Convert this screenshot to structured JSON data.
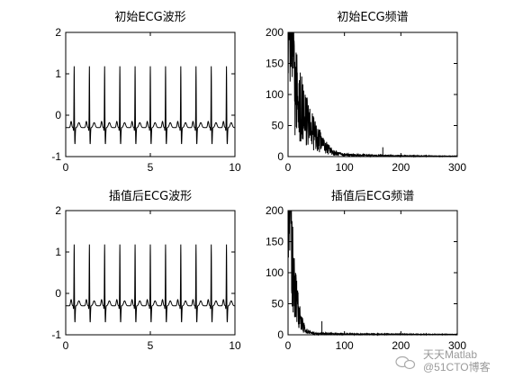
{
  "chart_data": [
    {
      "type": "line",
      "title": "初始ECG波形",
      "xlim": [
        0,
        10
      ],
      "ylim": [
        -1,
        2
      ],
      "xticks": [
        "0",
        "5",
        "10"
      ],
      "yticks": [
        "-1",
        "0",
        "1",
        "2"
      ],
      "grid": false,
      "series": [
        {
          "description": "ECG waveform, ~11 beats over 10 s; baseline about -0.3, R peaks about 1.2, dips to about -0.55",
          "baseline": -0.3,
          "r_peak": 1.2,
          "s_trough": -0.55,
          "beat_times": [
            0.5,
            1.4,
            2.3,
            3.2,
            4.1,
            5.0,
            5.9,
            6.8,
            7.7,
            8.6,
            9.5
          ]
        }
      ]
    },
    {
      "type": "line",
      "title": "初始ECG频谱",
      "xlim": [
        0,
        300
      ],
      "ylim": [
        0,
        200
      ],
      "xticks": [
        "0",
        "100",
        "200",
        "300"
      ],
      "yticks": [
        "0",
        "50",
        "100",
        "150",
        "200"
      ],
      "grid": false,
      "series": [
        {
          "description": "magnitude spectrum; clipped near 200 below ~20, decays to near 0 by ~90, small spike ~15 at 168",
          "envelope": [
            [
              0,
              200
            ],
            [
              10,
              200
            ],
            [
              20,
              150
            ],
            [
              30,
              110
            ],
            [
              40,
              80
            ],
            [
              50,
              55
            ],
            [
              60,
              38
            ],
            [
              70,
              22
            ],
            [
              80,
              12
            ],
            [
              90,
              7
            ],
            [
              100,
              5
            ],
            [
              150,
              3
            ],
            [
              200,
              2
            ],
            [
              300,
              1
            ]
          ],
          "spike": [
            168,
            15
          ]
        }
      ]
    },
    {
      "type": "line",
      "title": "插值后ECG波形",
      "xlim": [
        0,
        10
      ],
      "ylim": [
        -1,
        2
      ],
      "xticks": [
        "0",
        "5",
        "10"
      ],
      "yticks": [
        "-1",
        "0",
        "1",
        "2"
      ],
      "grid": false,
      "series": [
        {
          "description": "interpolated ECG waveform, same shape as original",
          "baseline": -0.3,
          "r_peak": 1.2,
          "s_trough": -0.55,
          "beat_times": [
            0.5,
            1.4,
            2.3,
            3.2,
            4.1,
            5.0,
            5.9,
            6.8,
            7.7,
            8.6,
            9.5
          ]
        }
      ]
    },
    {
      "type": "line",
      "title": "插值后ECG频谱",
      "xlim": [
        0,
        300
      ],
      "ylim": [
        0,
        200
      ],
      "xticks": [
        "0",
        "100",
        "200",
        "300"
      ],
      "yticks": [
        "0",
        "50",
        "100",
        "150",
        "200"
      ],
      "grid": false,
      "series": [
        {
          "description": "spectrum compressed to low frequencies; clipped at 200 below ~10, decays to near 0 by ~35, small spike ~22 at 60",
          "envelope": [
            [
              0,
              200
            ],
            [
              6,
              200
            ],
            [
              10,
              160
            ],
            [
              15,
              90
            ],
            [
              20,
              55
            ],
            [
              25,
              30
            ],
            [
              30,
              15
            ],
            [
              35,
              8
            ],
            [
              45,
              4
            ],
            [
              100,
              2
            ],
            [
              300,
              1
            ]
          ],
          "spike": [
            60,
            22
          ]
        }
      ]
    }
  ],
  "watermark": {
    "text1": "天天Matlab",
    "text2": "@51CTO博客"
  }
}
